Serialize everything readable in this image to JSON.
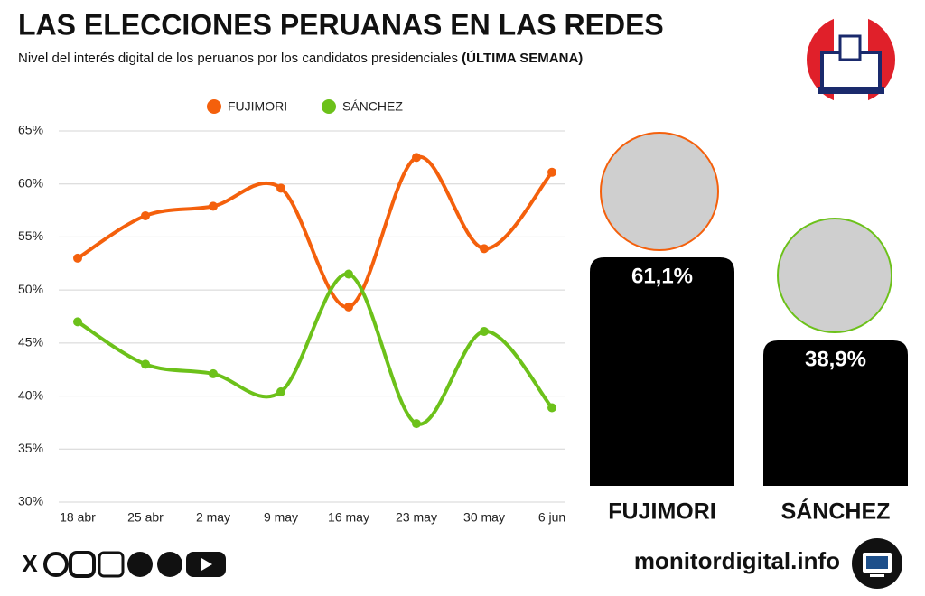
{
  "header": {
    "title": "LAS ELECCIONES PERUANAS EN LAS REDES",
    "subtitle": "Nivel del interés digital de los peruanos por los candidatos presidenciales",
    "subtitle_bold": "(ÚLTIMA SEMANA)"
  },
  "chart_data": [
    {
      "type": "line",
      "categories": [
        "18 abr",
        "25 abr",
        "2 may",
        "9 may",
        "16 may",
        "23 may",
        "30 may",
        "6 jun"
      ],
      "series": [
        {
          "name": "FUJIMORI",
          "color": "#f4600c",
          "values": [
            53.0,
            57.0,
            57.9,
            59.6,
            48.4,
            62.5,
            53.9,
            61.1
          ]
        },
        {
          "name": "SÁNCHEZ",
          "color": "#6cc11a",
          "values": [
            47.0,
            43.0,
            42.1,
            40.4,
            51.5,
            37.4,
            46.1,
            38.9
          ]
        }
      ],
      "ylim": [
        30,
        65
      ],
      "yticks": [
        {
          "value": 30,
          "label": "30%"
        },
        {
          "value": 35,
          "label": "35%"
        },
        {
          "value": 40,
          "label": "40%"
        },
        {
          "value": 45,
          "label": "45%"
        },
        {
          "value": 50,
          "label": "50%"
        },
        {
          "value": 55,
          "label": "55%"
        },
        {
          "value": 60,
          "label": "60%"
        },
        {
          "value": 65,
          "label": "65%"
        }
      ],
      "grid": true
    },
    {
      "type": "bar",
      "categories": [
        "FUJIMORI",
        "SÁNCHEZ"
      ],
      "values": [
        61.1,
        38.9
      ],
      "value_labels": [
        "61,1%",
        "38,9%"
      ],
      "color": "#000000"
    }
  ],
  "footer": {
    "site": "monitordigital.info"
  }
}
